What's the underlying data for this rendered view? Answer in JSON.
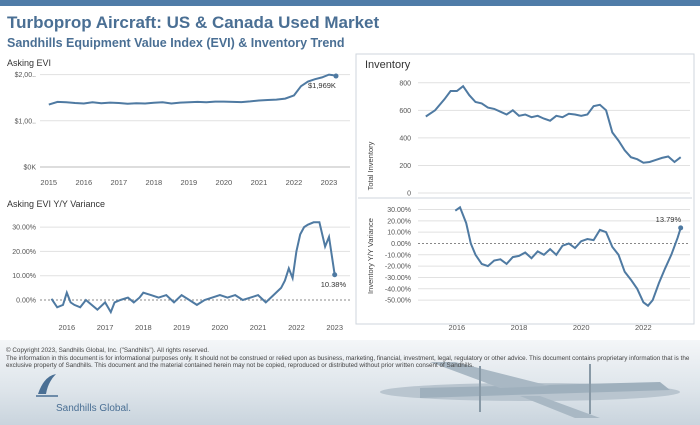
{
  "header": {
    "title": "Turboprop Aircraft:  US & Canada Used Market",
    "subtitle": "Sandhills Equipment Value Index (EVI) & Inventory Trend"
  },
  "colors": {
    "line": "#4f7aa2",
    "title": "#4a6f94",
    "axis": "#777777",
    "grid": "#d9d9d9"
  },
  "chart_data": [
    {
      "type": "line",
      "title": "Asking EVI",
      "x_ticks": [
        "2015",
        "2016",
        "2017",
        "2018",
        "2019",
        "2020",
        "2021",
        "2022",
        "2023"
      ],
      "y_ticks": [
        "$0K",
        "$1,00..",
        "$2,00.."
      ],
      "xlim": [
        2014.75,
        2023.6
      ],
      "ylim": [
        0,
        2100
      ],
      "end_label": "$1,969K",
      "x": [
        2015.0,
        2015.25,
        2015.5,
        2015.75,
        2016.0,
        2016.25,
        2016.5,
        2016.75,
        2017.0,
        2017.25,
        2017.5,
        2017.75,
        2018.0,
        2018.25,
        2018.5,
        2018.75,
        2019.0,
        2019.25,
        2019.5,
        2019.75,
        2020.0,
        2020.25,
        2020.5,
        2020.75,
        2021.0,
        2021.25,
        2021.5,
        2021.75,
        2022.0,
        2022.2,
        2022.4,
        2022.6,
        2022.8,
        2023.0,
        2023.1,
        2023.2
      ],
      "y": [
        1350,
        1410,
        1400,
        1385,
        1375,
        1400,
        1380,
        1395,
        1385,
        1370,
        1380,
        1375,
        1390,
        1400,
        1375,
        1395,
        1400,
        1410,
        1400,
        1415,
        1415,
        1410,
        1405,
        1420,
        1440,
        1450,
        1460,
        1480,
        1550,
        1750,
        1850,
        1900,
        1940,
        2000,
        1990,
        1969
      ]
    },
    {
      "type": "line",
      "title": "Asking EVI Y/Y Variance",
      "x_ticks": [
        "2016",
        "2017",
        "2018",
        "2019",
        "2020",
        "2021",
        "2022",
        "2023"
      ],
      "y_ticks": [
        "0.00%",
        "10.00%",
        "20.00%",
        "30.00%"
      ],
      "xlim": [
        2015.3,
        2023.4
      ],
      "ylim": [
        -7,
        35
      ],
      "end_label": "10.38%",
      "x": [
        2015.6,
        2015.75,
        2015.9,
        2016.0,
        2016.1,
        2016.2,
        2016.35,
        2016.5,
        2016.65,
        2016.8,
        2017.0,
        2017.15,
        2017.25,
        2017.4,
        2017.6,
        2017.75,
        2017.9,
        2018.0,
        2018.2,
        2018.4,
        2018.6,
        2018.8,
        2019.0,
        2019.2,
        2019.4,
        2019.6,
        2019.8,
        2020.0,
        2020.2,
        2020.4,
        2020.6,
        2020.8,
        2021.0,
        2021.2,
        2021.4,
        2021.6,
        2021.7,
        2021.8,
        2021.9,
        2022.0,
        2022.1,
        2022.2,
        2022.3,
        2022.45,
        2022.6,
        2022.75,
        2022.85,
        2023.0
      ],
      "y": [
        0.5,
        -3,
        -2,
        3,
        -1,
        -2,
        -3,
        0,
        -2,
        -4,
        -1,
        -5,
        -1,
        0,
        1,
        -1,
        1,
        3,
        2,
        1,
        2,
        -1,
        2,
        0,
        -2,
        0,
        1,
        2,
        1,
        2,
        0,
        1,
        2,
        -1,
        2,
        5,
        8,
        13,
        9,
        20,
        27,
        30,
        31,
        32,
        32,
        22,
        26,
        10.38
      ]
    },
    {
      "type": "line",
      "title": "Inventory",
      "ylabel": "Total Inventory",
      "x_ticks": [
        "2016",
        "2018",
        "2020",
        "2022"
      ],
      "y_ticks": [
        "0",
        "200",
        "400",
        "600",
        "800"
      ],
      "xlim": [
        2014.75,
        2023.5
      ],
      "ylim": [
        0,
        820
      ],
      "x": [
        2015.0,
        2015.3,
        2015.6,
        2015.8,
        2016.0,
        2016.2,
        2016.4,
        2016.6,
        2016.8,
        2017.0,
        2017.2,
        2017.4,
        2017.6,
        2017.8,
        2018.0,
        2018.2,
        2018.4,
        2018.6,
        2018.8,
        2019.0,
        2019.2,
        2019.4,
        2019.6,
        2019.8,
        2020.0,
        2020.2,
        2020.4,
        2020.6,
        2020.8,
        2021.0,
        2021.2,
        2021.4,
        2021.6,
        2021.8,
        2022.0,
        2022.2,
        2022.4,
        2022.6,
        2022.8,
        2023.0,
        2023.2
      ],
      "y": [
        555,
        600,
        680,
        740,
        740,
        775,
        710,
        660,
        650,
        620,
        610,
        590,
        570,
        600,
        560,
        570,
        550,
        560,
        540,
        525,
        560,
        550,
        575,
        570,
        560,
        570,
        630,
        640,
        600,
        440,
        380,
        310,
        260,
        245,
        220,
        225,
        240,
        255,
        265,
        225,
        260
      ]
    },
    {
      "type": "line",
      "ylabel": "Inventory Y/Y Variance",
      "x_ticks": [
        "2016",
        "2018",
        "2020",
        "2022"
      ],
      "y_ticks": [
        "-50.00%",
        "-40.00%",
        "-30.00%",
        "-20.00%",
        "-10.00%",
        "0.00%",
        "10.00%",
        "20.00%",
        "30.00%"
      ],
      "xlim": [
        2014.75,
        2023.5
      ],
      "ylim": [
        -57,
        34
      ],
      "end_label": "13.79%",
      "x": [
        2015.95,
        2016.1,
        2016.3,
        2016.45,
        2016.6,
        2016.8,
        2017.0,
        2017.2,
        2017.4,
        2017.6,
        2017.8,
        2018.0,
        2018.2,
        2018.4,
        2018.6,
        2018.8,
        2019.0,
        2019.2,
        2019.4,
        2019.6,
        2019.8,
        2020.0,
        2020.2,
        2020.4,
        2020.6,
        2020.8,
        2021.0,
        2021.2,
        2021.4,
        2021.6,
        2021.8,
        2022.0,
        2022.15,
        2022.3,
        2022.5,
        2022.7,
        2022.9,
        2023.1,
        2023.2
      ],
      "y": [
        29,
        32,
        18,
        0,
        -10,
        -18,
        -20,
        -15,
        -14,
        -18,
        -12,
        -11,
        -8,
        -13,
        -7,
        -10,
        -5,
        -10,
        -2,
        0,
        -4,
        2,
        4,
        3,
        12,
        10,
        -3,
        -10,
        -25,
        -32,
        -40,
        -52,
        -55,
        -50,
        -35,
        -22,
        -10,
        5,
        13.79
      ]
    }
  ],
  "footer": {
    "copyright": "© Copyright 2023, Sandhills Global, Inc. (\"Sandhills\"). All rights reserved.",
    "disclaimer": "The information in this document is for informational purposes only.  It should not be construed or relied upon as business, marketing, financial, investment, legal, regulatory or other advice. This document contains proprietary information that is the exclusive property of Sandhills. This document and the material contained herein may not be copied, reproduced or distributed without prior written consent of Sandhills.",
    "logo_text": "Sandhills Global."
  }
}
